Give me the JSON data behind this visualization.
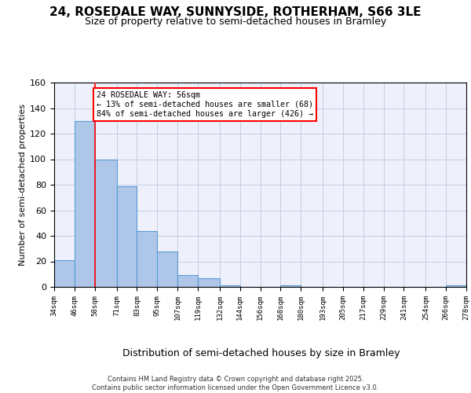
{
  "title1": "24, ROSEDALE WAY, SUNNYSIDE, ROTHERHAM, S66 3LE",
  "title2": "Size of property relative to semi-detached houses in Bramley",
  "xlabel": "Distribution of semi-detached houses by size in Bramley",
  "ylabel": "Number of semi-detached properties",
  "annotation_line1": "24 ROSEDALE WAY: 56sqm",
  "annotation_line2": "← 13% of semi-detached houses are smaller (68)",
  "annotation_line3": "84% of semi-detached houses are larger (426) →",
  "bin_edges": [
    34,
    46,
    58,
    71,
    83,
    95,
    107,
    119,
    132,
    144,
    156,
    168,
    180,
    193,
    205,
    217,
    229,
    241,
    254,
    266,
    278
  ],
  "bin_counts": [
    21,
    130,
    100,
    79,
    44,
    28,
    9,
    7,
    1,
    0,
    0,
    1,
    0,
    0,
    0,
    0,
    0,
    0,
    0,
    1
  ],
  "bar_color": "#aec6e8",
  "bar_edge_color": "#5b9bd5",
  "red_line_x": 58,
  "background_color": "#eef1fb",
  "grid_color": "#c0c8e0",
  "footer": "Contains HM Land Registry data © Crown copyright and database right 2025.\nContains public sector information licensed under the Open Government Licence v3.0.",
  "ylim": [
    0,
    160
  ],
  "title1_fontsize": 11,
  "title2_fontsize": 9,
  "yticks": [
    0,
    20,
    40,
    60,
    80,
    100,
    120,
    140,
    160
  ]
}
